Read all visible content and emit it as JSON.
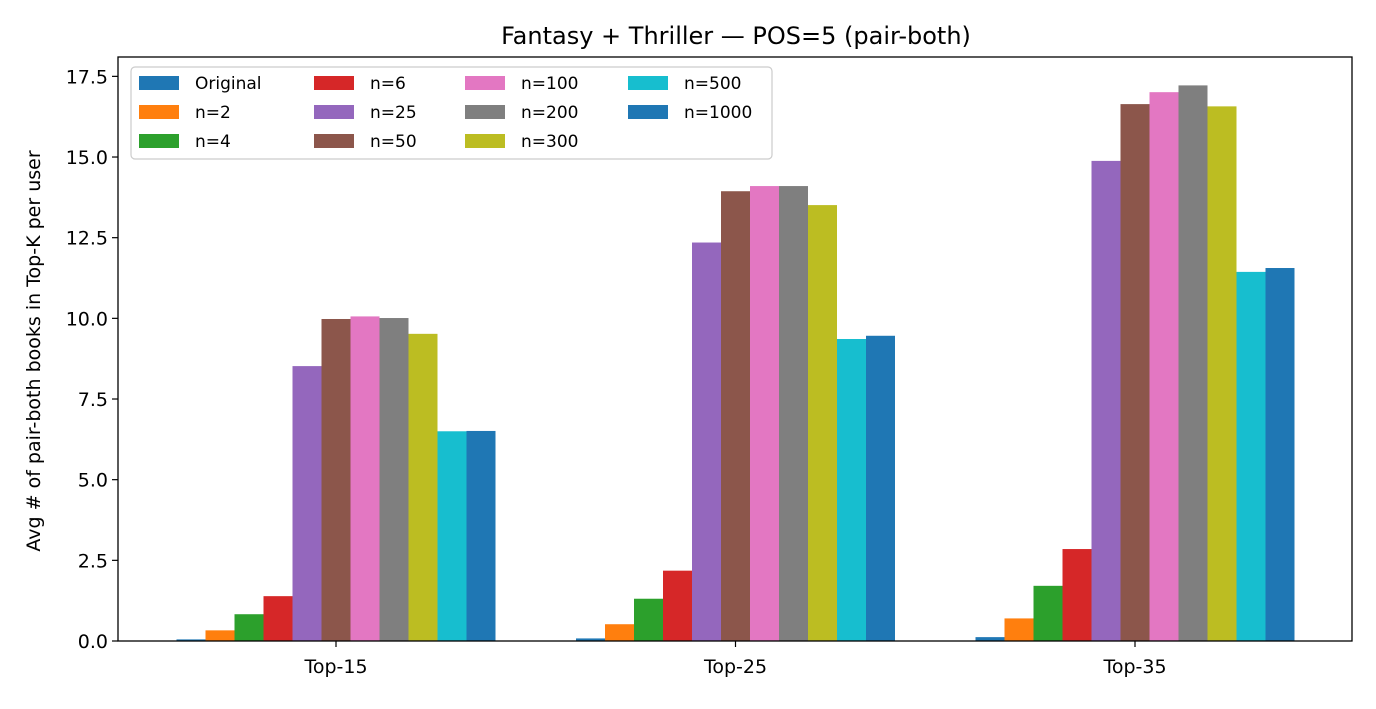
{
  "chart_data": {
    "type": "bar",
    "title": "Fantasy + Thriller — POS=5 (pair-both)",
    "xlabel": "",
    "ylabel": "Avg # of pair-both books in Top-K per user",
    "ylim": [
      0,
      18.1
    ],
    "yticks": [
      0.0,
      2.5,
      5.0,
      7.5,
      10.0,
      12.5,
      15.0,
      17.5
    ],
    "ytick_labels": [
      "0.0",
      "2.5",
      "5.0",
      "7.5",
      "10.0",
      "12.5",
      "15.0",
      "17.5"
    ],
    "categories": [
      "Top-15",
      "Top-25",
      "Top-35"
    ],
    "grid": false,
    "legend_position": "top-left",
    "series": [
      {
        "name": "Original",
        "color": "#1f77b4",
        "values": [
          0.05,
          0.08,
          0.12
        ]
      },
      {
        "name": "n=2",
        "color": "#ff7f0e",
        "values": [
          0.33,
          0.52,
          0.7
        ]
      },
      {
        "name": "n=4",
        "color": "#2ca02c",
        "values": [
          0.83,
          1.31,
          1.71
        ]
      },
      {
        "name": "n=6",
        "color": "#d62728",
        "values": [
          1.39,
          2.18,
          2.85
        ]
      },
      {
        "name": "n=25",
        "color": "#9467bd",
        "values": [
          8.52,
          12.35,
          14.88
        ]
      },
      {
        "name": "n=50",
        "color": "#8c564b",
        "values": [
          9.98,
          13.94,
          16.64
        ]
      },
      {
        "name": "n=100",
        "color": "#e377c2",
        "values": [
          10.06,
          14.1,
          17.01
        ]
      },
      {
        "name": "n=200",
        "color": "#7f7f7f",
        "values": [
          10.01,
          14.1,
          17.22
        ]
      },
      {
        "name": "n=300",
        "color": "#bcbd22",
        "values": [
          9.52,
          13.51,
          16.57
        ]
      },
      {
        "name": "n=500",
        "color": "#17becf",
        "values": [
          6.5,
          9.36,
          11.44
        ]
      },
      {
        "name": "n=1000",
        "color": "#1f77b4",
        "values": [
          6.51,
          9.46,
          11.56
        ]
      }
    ]
  }
}
